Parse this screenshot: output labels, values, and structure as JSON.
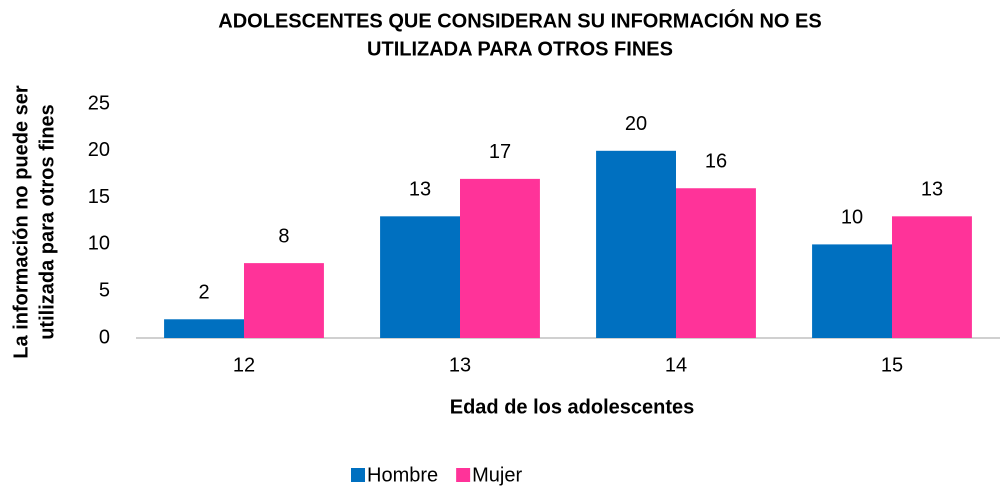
{
  "chart_data": {
    "type": "bar",
    "title": [
      "ADOLESCENTES QUE CONSIDERAN SU INFORMACIÓN NO ES",
      "UTILIZADA PARA OTROS FINES"
    ],
    "x_label": "Edad de los adolescentes",
    "y_label": [
      "La información no puede ser",
      "utilizada para otros fines"
    ],
    "categories": [
      "12",
      "13",
      "14",
      "15"
    ],
    "series": [
      {
        "name": "Hombre",
        "color": "#0070c0",
        "values": [
          2,
          13,
          20,
          10
        ]
      },
      {
        "name": "Mujer",
        "color": "#ff3399",
        "values": [
          8,
          17,
          16,
          13
        ]
      }
    ],
    "ylim": [
      0,
      25
    ],
    "yticks": [
      0,
      5,
      10,
      15,
      20,
      25
    ],
    "grid": false,
    "legend": "bottom"
  }
}
